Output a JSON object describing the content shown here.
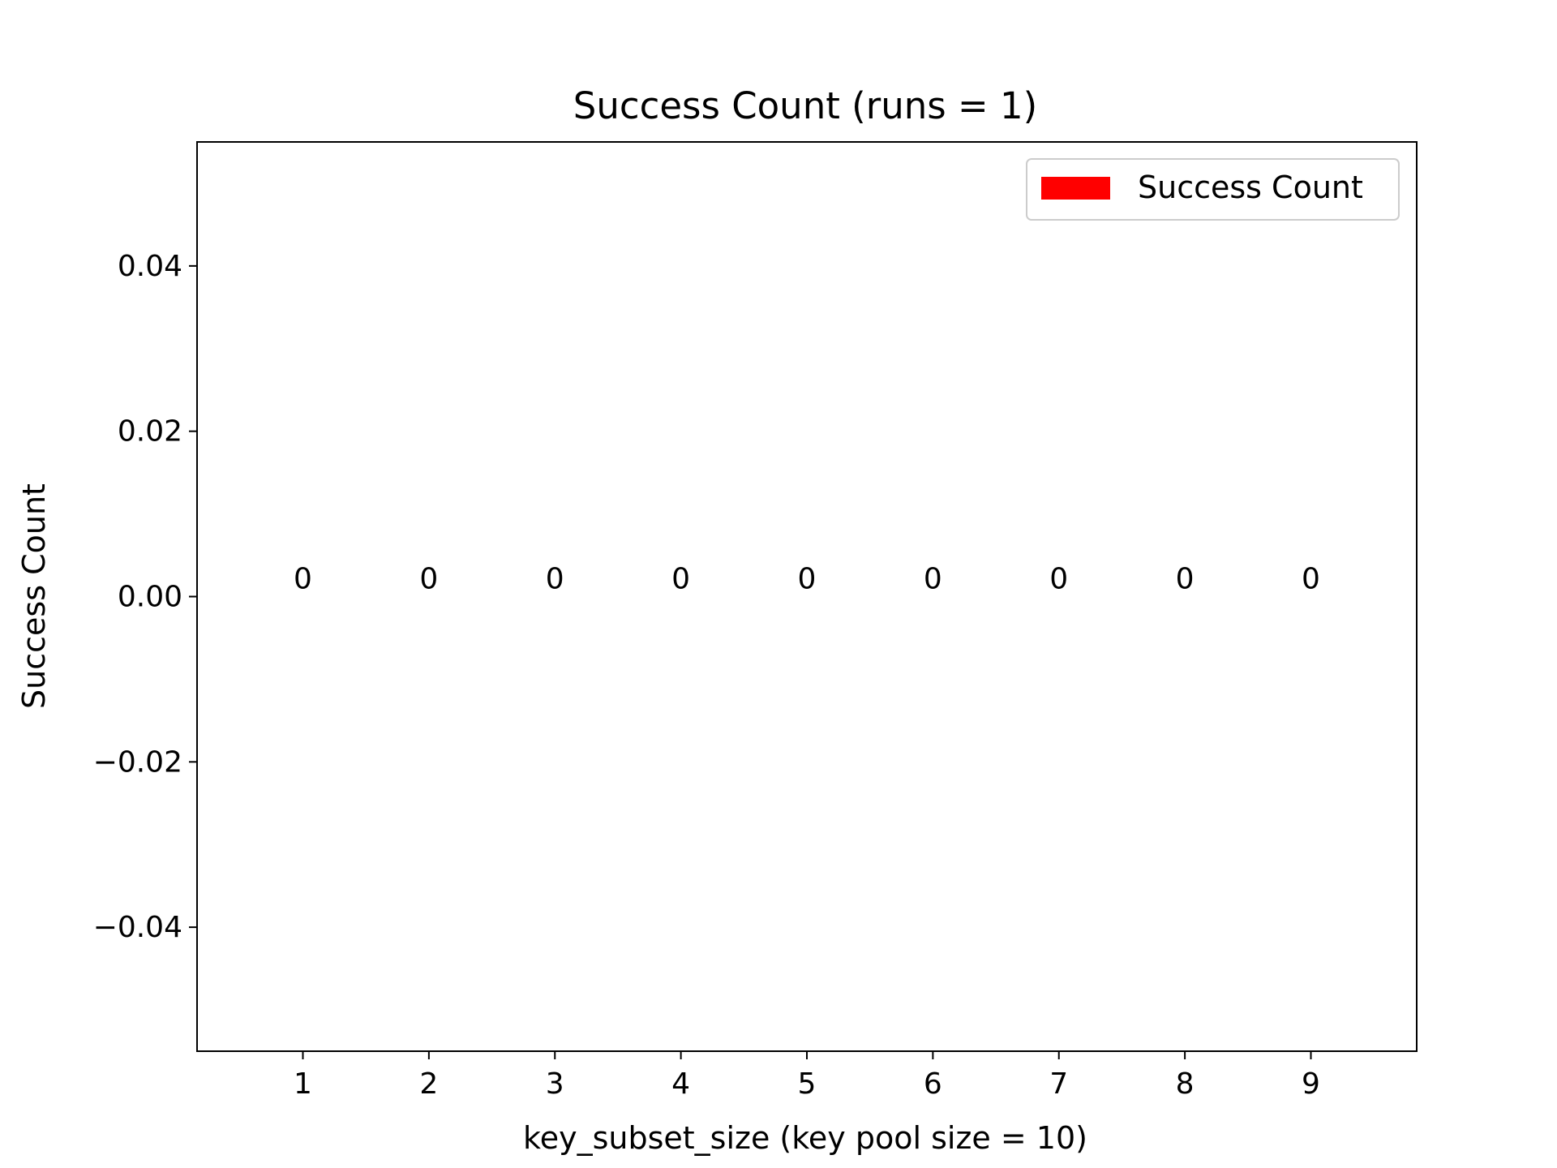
{
  "chart_data": {
    "type": "bar",
    "title": "Success Count (runs = 1)",
    "xlabel": "key_subset_size (key pool size = 10)",
    "ylabel": "Success Count",
    "categories": [
      "1",
      "2",
      "3",
      "4",
      "5",
      "6",
      "7",
      "8",
      "9"
    ],
    "x": [
      1,
      2,
      3,
      4,
      5,
      6,
      7,
      8,
      9
    ],
    "series": [
      {
        "name": "Success Count",
        "color": "#ff0000",
        "values": [
          0,
          0,
          0,
          0,
          0,
          0,
          0,
          0,
          0
        ],
        "labels": [
          "0",
          "0",
          "0",
          "0",
          "0",
          "0",
          "0",
          "0",
          "0"
        ]
      }
    ],
    "xlim": [
      0.16,
      9.84
    ],
    "ylim": [
      -0.055,
      0.055
    ],
    "yticks": [
      -0.04,
      -0.02,
      0.0,
      0.02,
      0.04
    ],
    "ytick_labels": [
      "−0.04",
      "−0.02",
      "0.00",
      "0.02",
      "0.04"
    ],
    "grid": false,
    "legend": {
      "position": "top-right",
      "entries": [
        "Success Count"
      ]
    }
  }
}
